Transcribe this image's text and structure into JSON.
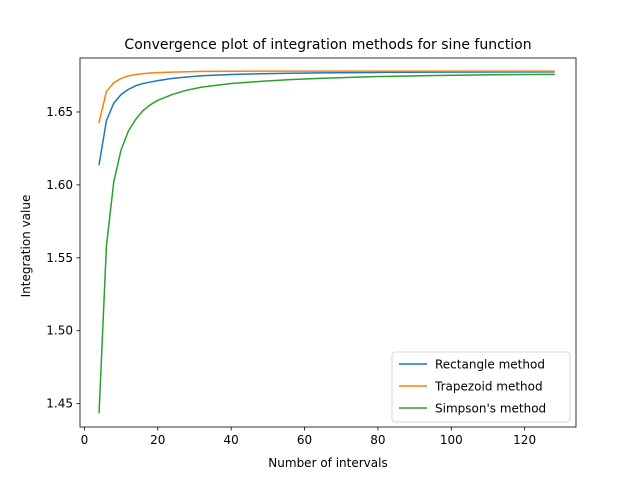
{
  "chart_data": {
    "type": "line",
    "title": "Convergence plot of integration methods for sine function",
    "xlabel": "Number of intervals",
    "ylabel": "Integration value",
    "xlim": [
      -1.2,
      134
    ],
    "ylim": [
      1.434,
      1.687
    ],
    "xticks": [
      0,
      20,
      40,
      60,
      80,
      100,
      120
    ],
    "xtick_labels": [
      "0",
      "20",
      "40",
      "60",
      "80",
      100,
      "120"
    ],
    "yticks": [
      1.45,
      1.5,
      1.55,
      1.6,
      1.65
    ],
    "ytick_labels": [
      "1.45",
      "1.50",
      "1.55",
      "1.60",
      "1.65"
    ],
    "grid": false,
    "legend_position": "lower right",
    "x": [
      4,
      6,
      8,
      10,
      12,
      14,
      16,
      18,
      20,
      24,
      28,
      32,
      40,
      48,
      56,
      64,
      80,
      96,
      112,
      128
    ],
    "series": [
      {
        "name": "Rectangle method",
        "color": "#1f77b4",
        "values": [
          1.614,
          1.644,
          1.656,
          1.662,
          1.6655,
          1.668,
          1.6695,
          1.6705,
          1.6715,
          1.673,
          1.674,
          1.6748,
          1.6757,
          1.6762,
          1.6765,
          1.6768,
          1.6771,
          1.6773,
          1.6774,
          1.6775
        ]
      },
      {
        "name": "Trapezoid method",
        "color": "#ff7f0e",
        "values": [
          1.643,
          1.664,
          1.67,
          1.673,
          1.6747,
          1.6757,
          1.6763,
          1.6767,
          1.677,
          1.6773,
          1.6776,
          1.6778,
          1.6779,
          1.678,
          1.678,
          1.678,
          1.678,
          1.678,
          1.678,
          1.678
        ]
      },
      {
        "name": "Simpson's method",
        "color": "#2ca02c",
        "values": [
          1.444,
          1.558,
          1.602,
          1.624,
          1.637,
          1.645,
          1.651,
          1.655,
          1.658,
          1.662,
          1.665,
          1.667,
          1.6695,
          1.671,
          1.6722,
          1.673,
          1.6743,
          1.675,
          1.6755,
          1.6758
        ]
      }
    ]
  }
}
